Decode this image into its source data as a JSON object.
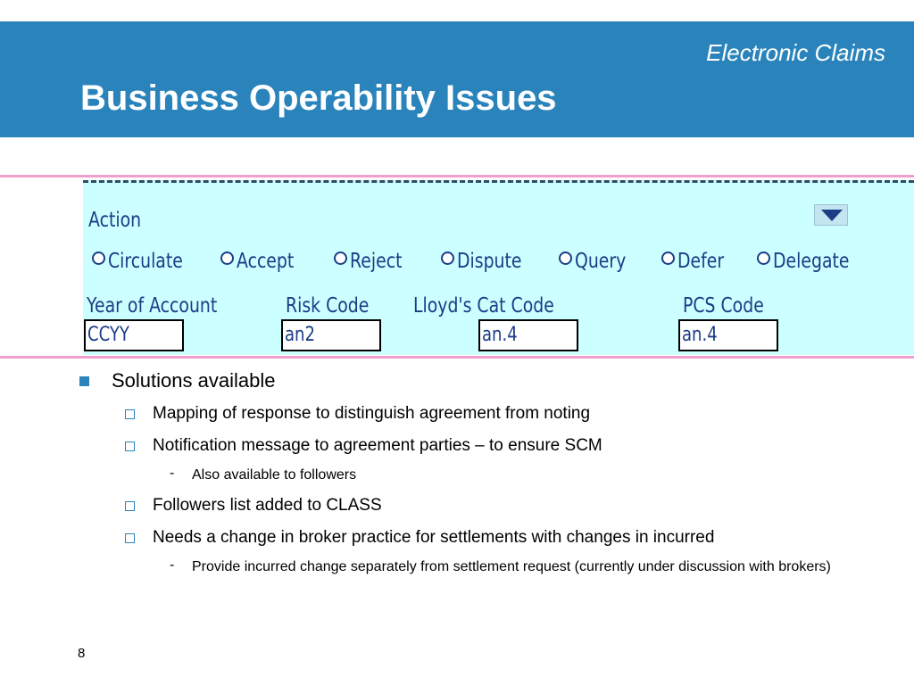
{
  "header": {
    "subtitle": "Electronic Claims",
    "title": "Business Operability Issues",
    "background_color": "#2a84bb"
  },
  "form": {
    "action_label": "Action",
    "dropdown_icon": "triangle-down-icon",
    "radio_options": [
      "Circulate",
      "Accept",
      "Reject",
      "Dispute",
      "Query",
      "Defer",
      "Delegate"
    ],
    "fields": [
      {
        "label": "Year of Account",
        "value": "CCYY"
      },
      {
        "label": "Risk Code",
        "value": "an2"
      },
      {
        "label": "Lloyd's Cat Code",
        "value": "an.4"
      },
      {
        "label": "PCS Code",
        "value": "an.4"
      }
    ],
    "background_color": "#ccffff",
    "text_color": "#1c3c86"
  },
  "bullets": {
    "level1": "Solutions available",
    "items": [
      "Mapping of response to distinguish agreement from noting",
      "Notification message to agreement parties – to ensure SCM",
      "Also available to followers",
      "Followers list added to CLASS",
      "Needs a change in broker practice for settlements with changes in incurred",
      "Provide incurred change separately from settlement request (currently under discussion with brokers)"
    ],
    "dash": "-"
  },
  "page_number": "8"
}
